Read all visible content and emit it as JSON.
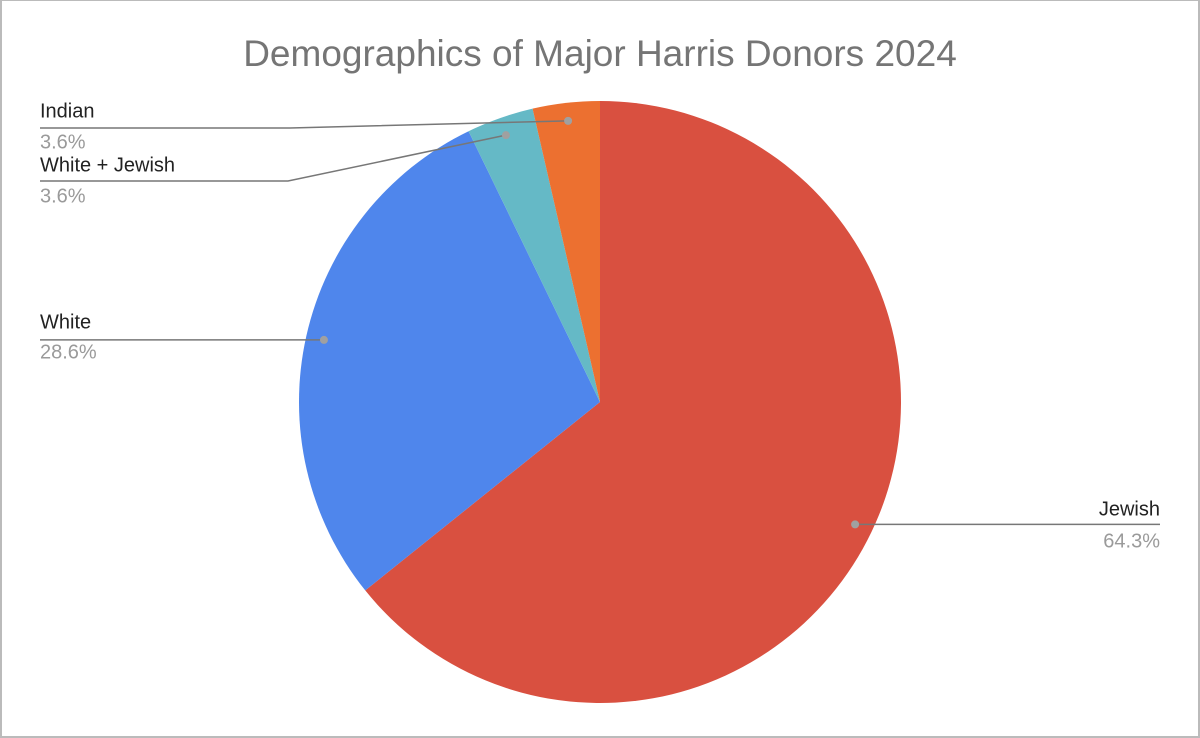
{
  "chart_data": {
    "type": "pie",
    "title": "Demographics of Major Harris Donors 2024",
    "categories": [
      "Jewish",
      "White",
      "White + Jewish",
      "Indian"
    ],
    "values": [
      64.3,
      28.6,
      3.6,
      3.6
    ],
    "value_labels": [
      "64.3%",
      "28.6%",
      "3.6%",
      "3.6%"
    ],
    "colors": [
      "#d95040",
      "#4f86ec",
      "#65b9c6",
      "#ec7030"
    ]
  }
}
